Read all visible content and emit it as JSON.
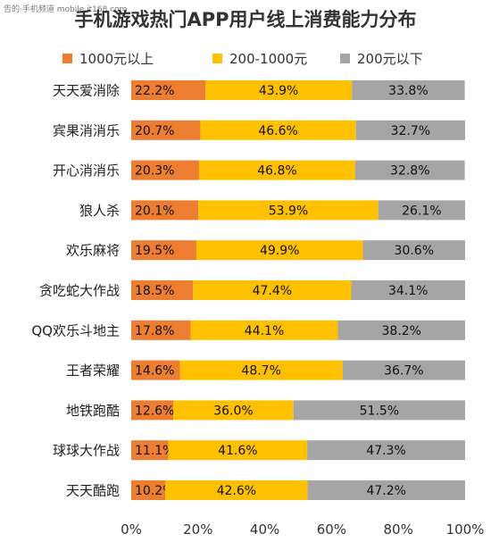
{
  "header": {
    "watermark": "告的·手机频道 mobile.it168.com"
  },
  "chart_data": {
    "type": "bar",
    "orientation": "horizontal",
    "stacked": true,
    "title": "手机游戏热门APP用户线上消费能力分布",
    "xlabel": "",
    "ylabel": "",
    "xlim": [
      0,
      100
    ],
    "x_ticks": [
      "0%",
      "20%",
      "40%",
      "60%",
      "80%",
      "100%"
    ],
    "grid": false,
    "legend_position": "top",
    "categories": [
      "天天爱消除",
      "宾果消消乐",
      "开心消消乐",
      "狼人杀",
      "欢乐麻将",
      "贪吃蛇大作战",
      "QQ欢乐斗地主",
      "王者荣耀",
      "地铁跑酷",
      "球球大作战",
      "天天酷跑"
    ],
    "series": [
      {
        "name": "1000元以上",
        "color": "#ED7D31",
        "values": [
          22.2,
          20.7,
          20.3,
          20.1,
          19.5,
          18.5,
          17.8,
          14.6,
          12.6,
          11.1,
          10.2
        ],
        "labels": [
          "22.2%",
          "20.7%",
          "20.3%",
          "20.1%",
          "19.5%",
          "18.5%",
          "17.8%",
          "14.6%",
          "12.6%",
          "11.1%",
          "10.2%"
        ]
      },
      {
        "name": "200-1000元",
        "color": "#FFC000",
        "values": [
          43.9,
          46.6,
          46.8,
          53.9,
          49.9,
          47.4,
          44.1,
          48.7,
          36.0,
          41.6,
          42.6
        ],
        "labels": [
          "43.9%",
          "46.6%",
          "46.8%",
          "53.9%",
          "49.9%",
          "47.4%",
          "44.1%",
          "48.7%",
          "36.0%",
          "41.6%",
          "42.6%"
        ]
      },
      {
        "name": "200元以下",
        "color": "#A5A5A5",
        "values": [
          33.8,
          32.7,
          32.8,
          26.1,
          30.6,
          34.1,
          38.2,
          36.7,
          51.5,
          47.3,
          47.2
        ],
        "labels": [
          "33.8%",
          "32.7%",
          "32.8%",
          "26.1%",
          "30.6%",
          "34.1%",
          "38.2%",
          "36.7%",
          "51.5%",
          "47.3%",
          "47.2%"
        ]
      }
    ]
  }
}
